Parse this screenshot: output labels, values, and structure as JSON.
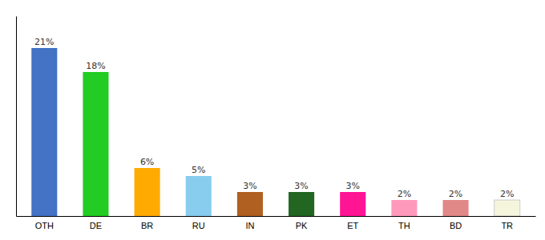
{
  "chart_data": {
    "type": "bar",
    "categories": [
      "OTH",
      "DE",
      "BR",
      "RU",
      "IN",
      "PK",
      "ET",
      "TH",
      "BD",
      "TR"
    ],
    "values": [
      21,
      18,
      6,
      5,
      3,
      3,
      3,
      2,
      2,
      2
    ],
    "value_labels": [
      "21%",
      "18%",
      "6%",
      "5%",
      "3%",
      "3%",
      "3%",
      "2%",
      "2%",
      "2%"
    ],
    "colors": [
      "#4472c4",
      "#22cc22",
      "#ffaa00",
      "#88ccee",
      "#b06020",
      "#226622",
      "#ff1493",
      "#ff99bb",
      "#e08888",
      "#f5f5dc"
    ],
    "ylim": [
      0,
      25
    ],
    "data_labels": true,
    "tick_labels": "x",
    "grid": false
  }
}
